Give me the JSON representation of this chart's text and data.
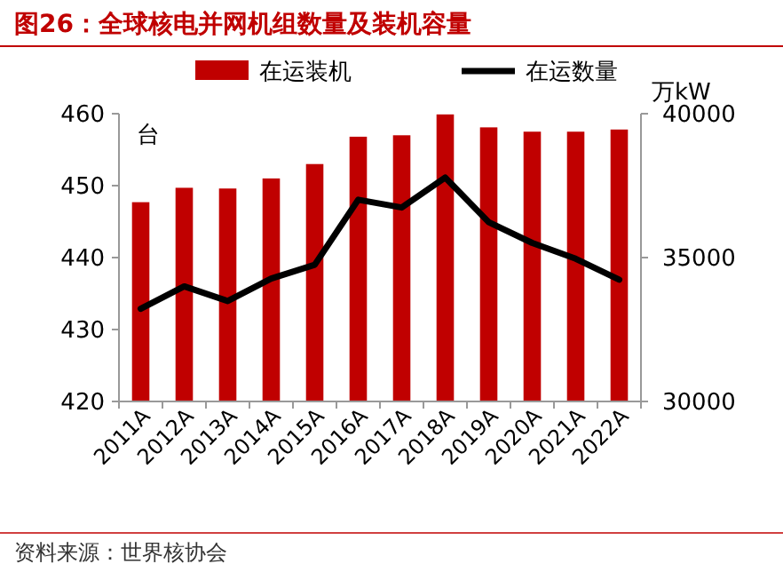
{
  "chart_data": {
    "type": "bar",
    "title": "图26：全球核电并网机组数量及装机容量",
    "categories": [
      "2011A",
      "2012A",
      "2013A",
      "2014A",
      "2015A",
      "2016A",
      "2017A",
      "2018A",
      "2019A",
      "2020A",
      "2021A",
      "2022A"
    ],
    "series": [
      {
        "name": "在运装机",
        "color": "#c00000",
        "values": [
          447.7,
          449.7,
          449.6,
          451.0,
          453.0,
          456.8,
          457.0,
          459.9,
          458.1,
          457.5,
          457.5,
          457.8
        ]
      },
      {
        "name": "在运数量",
        "type": "line",
        "axis": "y2",
        "color": "#000000",
        "values": [
          33220,
          34000,
          33490,
          34270,
          34750,
          37010,
          36740,
          37780,
          36230,
          35510,
          34960,
          34230
        ]
      }
    ],
    "ylim": [
      420,
      460
    ],
    "yticks": [
      420,
      430,
      440,
      450,
      460
    ],
    "y2lim": [
      30000,
      40000
    ],
    "y2ticks": [
      30000,
      35000,
      40000
    ],
    "ylabel": "台",
    "y2label": "万kW",
    "legend": "top",
    "grid": false,
    "marker": "none",
    "line_style": "solid",
    "annotations": [
      "资料来源：世界核协会"
    ]
  }
}
